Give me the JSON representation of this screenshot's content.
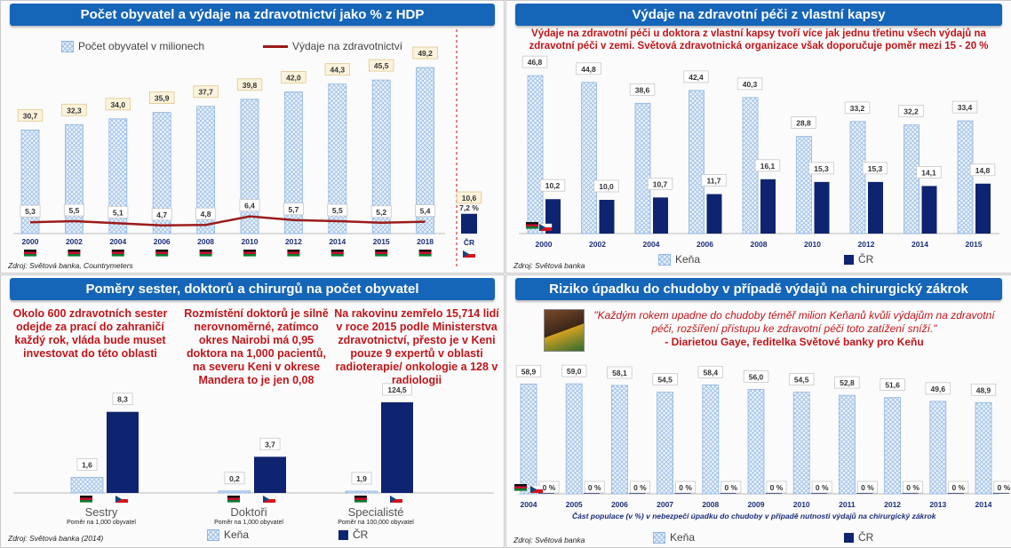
{
  "panels": {
    "p1": {
      "title": "Počet obyvatel a výdaje na zdravotnictví jako % z HDP",
      "source": "Zdroj: Světová banka, Countrymeters",
      "legend_bar": "Počet obyvatel v milionech",
      "legend_line": "Výdaje na zdravotnictví"
    },
    "p2": {
      "title": "Výdaje na zdravotní péči z vlastní kapsy",
      "source": "Zdroj: Světová banka",
      "subtitle": "Výdaje na zdravotní péči u doktora z vlastní kapsy tvoří více jak jednu třetinu všech výdajů na zdravotní péči v zemi. Světová zdravotnická organizace však doporučuje poměr mezi 15 - 20 %"
    },
    "p3": {
      "title": "Poměry sester, doktorů a chirurgů na počet obyvatel",
      "source": "Zdroj: Světová banka (2014)",
      "note1": "Okolo 600 zdravotních sester odejde za prací do zahraničí každý rok, vláda bude muset investovat do této oblasti",
      "note2": "Rozmístění doktorů je silně nerovnoměrné, zatímco okres Nairobi má 0,95 doktora na 1,000 pacientů, na severu Keni v okrese Mandera to je jen 0,08",
      "note3": "Na rakovinu zemřelo 15,714 lidí v roce 2015 podle Ministerstva zdravotnictví, přesto je v Keni pouze 9 expertů v oblasti radioterapie/ onkologie a 128 v radiologii"
    },
    "p4": {
      "title": "Riziko úpadku do chudoby v případě výdajů na chirurgický zákrok",
      "source": "Zdroj: Světová banka",
      "quote": "\"Každým rokem upadne do chudoby téměř milion Keňanů kvůli výdajům na zdravotní péči, rozšíření přístupu ke zdravotní péči toto zatížení sníží.\"",
      "quote_author": "- Diarietou Gaye, ředitelka Světové banky pro Keňu"
    }
  },
  "legend": {
    "kena": "Keňa",
    "cr": "ČR"
  },
  "colors": {
    "hatch": "#9cc0e8",
    "navy": "#0f2470",
    "line": "#9b1b1b",
    "banner": "#1565b8",
    "note": "#c0151a"
  },
  "chart_data": [
    {
      "type": "bar",
      "title": "Počet obyvatel a výdaje na zdravotnictví jako % z HDP",
      "categories": [
        "2000",
        "2002",
        "2004",
        "2006",
        "2008",
        "2010",
        "2012",
        "2014",
        "2015",
        "2018"
      ],
      "series": [
        {
          "name": "Počet obyvatel v milionech",
          "type": "bar",
          "values": [
            30.7,
            32.3,
            34.0,
            35.9,
            37.7,
            39.8,
            42.0,
            44.3,
            45.5,
            49.2
          ],
          "labels": [
            "30,7",
            "32,3",
            "34,0",
            "35,9",
            "37,7",
            "39,8",
            "42,0",
            "44,3",
            "45,5",
            "49,2"
          ]
        },
        {
          "name": "Výdaje na zdravotnictví",
          "type": "line",
          "values": [
            5.3,
            5.5,
            5.1,
            4.7,
            4.8,
            6.4,
            5.7,
            5.5,
            5.2,
            5.4
          ],
          "labels": [
            "5,3",
            "5,5",
            "5,1",
            "4,7",
            "4,8",
            "6,4",
            "5,7",
            "5,5",
            "5,2",
            "5,4"
          ]
        }
      ],
      "cr": {
        "category": "ČR",
        "population": 10.6,
        "population_label": "10,6",
        "spending_label": "7,2 %"
      }
    },
    {
      "type": "bar",
      "title": "Výdaje na zdravotní péči z vlastní kapsy",
      "categories": [
        "2000",
        "2002",
        "2004",
        "2006",
        "2008",
        "2010",
        "2012",
        "2014",
        "2015"
      ],
      "series": [
        {
          "name": "Keňa",
          "values": [
            46.8,
            44.8,
            38.6,
            42.4,
            40.3,
            28.8,
            33.2,
            32.2,
            33.4
          ],
          "labels": [
            "46,8",
            "44,8",
            "38,6",
            "42,4",
            "40,3",
            "28,8",
            "33,2",
            "32,2",
            "33,4"
          ]
        },
        {
          "name": "ČR",
          "values": [
            10.2,
            10.0,
            10.7,
            11.7,
            16.1,
            15.3,
            15.3,
            14.1,
            14.8
          ],
          "labels": [
            "10,2",
            "10,0",
            "10,7",
            "11,7",
            "16,1",
            "15,3",
            "15,3",
            "14,1",
            "14,8"
          ]
        }
      ]
    },
    {
      "type": "bar",
      "title": "Poměry sester, doktorů a chirurgů na počet obyvatel",
      "categories": [
        "Sestry",
        "Doktoři",
        "Specialisté"
      ],
      "sublabels": [
        "Poměr na 1,000 obyvatel",
        "Poměr na 1,000 obyvatel",
        "Poměr na 100,000 obyvatel"
      ],
      "group_ylim": [
        [
          0,
          10
        ],
        [
          0,
          10
        ],
        [
          0,
          150
        ]
      ],
      "series": [
        {
          "name": "Keňa",
          "values": [
            1.6,
            0.2,
            1.9
          ],
          "labels": [
            "1,6",
            "0,2",
            "1,9"
          ]
        },
        {
          "name": "ČR",
          "values": [
            8.3,
            3.7,
            124.5
          ],
          "labels": [
            "8,3",
            "3,7",
            "124,5"
          ]
        }
      ]
    },
    {
      "type": "bar",
      "title": "Riziko úpadku do chudoby v případě výdajů na chirurgický zákrok",
      "xlabel": "Část populace (v %) v nebezpečí úpadku do chudoby v případě nutnosti výdajů na chirurgický zákrok",
      "categories": [
        "2004",
        "2005",
        "2006",
        "2007",
        "2008",
        "2009",
        "2010",
        "2011",
        "2012",
        "2013",
        "2014"
      ],
      "series": [
        {
          "name": "Keňa",
          "values": [
            58.9,
            59.0,
            58.1,
            54.5,
            58.4,
            56.0,
            54.5,
            52.8,
            51.6,
            49.6,
            48.9
          ],
          "labels": [
            "58,9",
            "59,0",
            "58,1",
            "54,5",
            "58,4",
            "56,0",
            "54,5",
            "52,8",
            "51,6",
            "49,6",
            "48,9"
          ]
        },
        {
          "name": "ČR",
          "values": [
            0,
            0,
            0,
            0,
            0,
            0,
            0,
            0,
            0,
            0,
            0
          ],
          "labels": [
            "0 %",
            "0 %",
            "0 %",
            "0 %",
            "0 %",
            "0 %",
            "0 %",
            "0 %",
            "0 %",
            "0 %",
            "0 %"
          ]
        }
      ]
    }
  ]
}
